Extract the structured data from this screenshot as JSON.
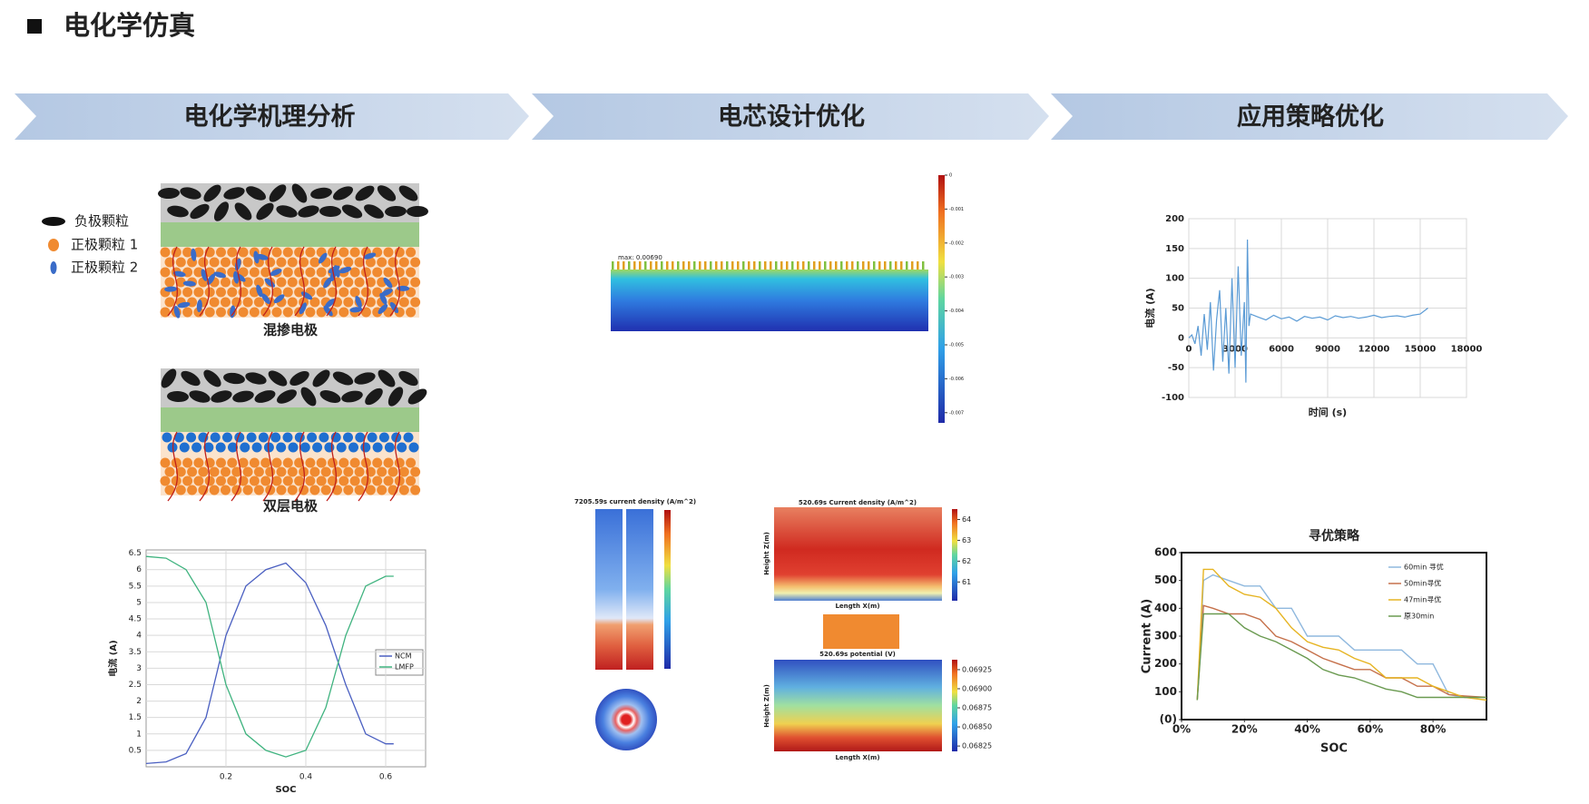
{
  "header": {
    "title": "电化学仿真"
  },
  "sections": [
    "电化学机理分析",
    "电芯设计优化",
    "应用策略优化"
  ],
  "legend": [
    "负极颗粒",
    "正极颗粒 1",
    "正极颗粒 2"
  ],
  "electrodes": [
    "混掺电极",
    "双层电极"
  ],
  "soc_chart": {
    "type": "line",
    "xlabel": "SOC",
    "ylabel": "电流 (A)",
    "x": [
      0,
      0.05,
      0.1,
      0.15,
      0.2,
      0.25,
      0.3,
      0.35,
      0.4,
      0.45,
      0.5,
      0.55,
      0.6,
      0.62
    ],
    "series": [
      {
        "name": "NCM",
        "color": "#4a5fc1",
        "values": [
          0.1,
          0.15,
          0.4,
          1.5,
          4.0,
          5.5,
          6.0,
          6.2,
          5.6,
          4.3,
          2.5,
          1.0,
          0.7,
          0.7
        ]
      },
      {
        "name": "LMFP",
        "color": "#3fb37f",
        "values": [
          6.4,
          6.35,
          6.0,
          5.0,
          2.5,
          1.0,
          0.5,
          0.3,
          0.5,
          1.8,
          4.0,
          5.5,
          5.8,
          5.8
        ]
      }
    ],
    "xlim": [
      0,
      0.7
    ],
    "ylim": [
      0,
      6.6
    ],
    "xticks": [
      0.2,
      0.4,
      0.6
    ],
    "yticks": [
      0.5,
      1,
      1.5,
      2,
      2.5,
      3,
      3.5,
      4,
      4.5,
      5,
      5.5,
      6,
      6.5
    ],
    "grid": true
  },
  "sim": {
    "max_label": "max: 0.00690",
    "cyl_title": "7205.59s current density (A/m^2)",
    "hm1_title": "520.69s Current density (A/m^2)",
    "hm2_title": "520.69s potential (V)",
    "height": "Height Z(m)",
    "length": "Length X(m)",
    "colorbars": [
      {
        "lim": [
          -0.0073,
          0
        ],
        "ticks": [
          0,
          -0.001,
          -0.002,
          -0.003,
          -0.004,
          -0.005,
          -0.006,
          -0.007
        ]
      },
      {
        "lim": [
          60.1,
          64.5
        ],
        "ticks": [
          64,
          63,
          62,
          61
        ]
      },
      {
        "lim": [
          0.06818,
          0.06938
        ],
        "ticks": [
          0.06925,
          {
            "value": 0.069,
            "label": "0.06900"
          },
          0.06875,
          {
            "value": 0.0685,
            "label": "0.06850"
          },
          0.06825
        ]
      }
    ]
  },
  "current_chart": {
    "type": "line",
    "xlabel": "时间 (s)",
    "ylabel": "电流 (A)",
    "color": "#5b9bd5",
    "x": [
      0,
      200,
      400,
      600,
      800,
      1000,
      1200,
      1400,
      1600,
      1800,
      2000,
      2200,
      2400,
      2600,
      2800,
      3000,
      3200,
      3400,
      3600,
      3700,
      3800,
      3900,
      4000,
      4500,
      5000,
      5500,
      6000,
      6500,
      7000,
      7500,
      8000,
      8500,
      9000,
      9500,
      10000,
      10500,
      11000,
      11500,
      12000,
      12500,
      13000,
      13500,
      14000,
      14500,
      15000,
      15500
    ],
    "values": [
      0,
      5,
      -10,
      20,
      -30,
      40,
      -20,
      60,
      -55,
      30,
      80,
      -40,
      50,
      -60,
      100,
      -50,
      120,
      -30,
      60,
      -75,
      165,
      20,
      40,
      35,
      30,
      38,
      32,
      35,
      28,
      36,
      33,
      35,
      30,
      37,
      34,
      36,
      33,
      35,
      38,
      34,
      36,
      37,
      35,
      38,
      40,
      50
    ],
    "xlim": [
      0,
      18000
    ],
    "ylim": [
      -100,
      200
    ],
    "xticks": [
      0,
      3000,
      6000,
      9000,
      12000,
      15000,
      18000
    ],
    "yticks": [
      -100,
      -50,
      0,
      50,
      100,
      150,
      200
    ],
    "grid": true
  },
  "strategy_chart": {
    "type": "line",
    "title": "寻优策略",
    "xlabel": "SOC",
    "ylabel": "Current (A)",
    "x": [
      5,
      7,
      10,
      15,
      20,
      25,
      30,
      35,
      40,
      45,
      50,
      55,
      60,
      65,
      70,
      75,
      80,
      85,
      90,
      97
    ],
    "series": [
      {
        "name": "60min 寻优",
        "color": "#8fb8de",
        "values": [
          70,
          500,
          520,
          500,
          480,
          480,
          400,
          400,
          300,
          300,
          300,
          250,
          250,
          250,
          250,
          200,
          200,
          90,
          80,
          80
        ]
      },
      {
        "name": "50min寻优",
        "color": "#c5704a",
        "values": [
          70,
          410,
          400,
          380,
          380,
          360,
          300,
          280,
          250,
          220,
          200,
          180,
          180,
          150,
          150,
          120,
          120,
          90,
          85,
          80
        ]
      },
      {
        "name": "47min寻优",
        "color": "#e6b422",
        "values": [
          70,
          540,
          540,
          480,
          450,
          440,
          400,
          330,
          280,
          260,
          250,
          220,
          200,
          150,
          150,
          150,
          120,
          100,
          80,
          70
        ]
      },
      {
        "name": "原30min",
        "color": "#6a9a50",
        "values": [
          70,
          380,
          380,
          380,
          330,
          300,
          280,
          250,
          220,
          180,
          160,
          150,
          130,
          110,
          100,
          80,
          80,
          80,
          80,
          80
        ]
      }
    ],
    "xlim": [
      0,
      97
    ],
    "ylim": [
      0,
      600
    ],
    "xticks": [
      {
        "value": 0,
        "label": "0%"
      },
      {
        "value": 20,
        "label": "20%"
      },
      {
        "value": 40,
        "label": "40%"
      },
      {
        "value": 60,
        "label": "60%"
      },
      {
        "value": 80,
        "label": "80%"
      }
    ],
    "yticks": [
      {
        "value": 0,
        "label": "(0)"
      },
      100,
      200,
      300,
      400,
      500,
      600
    ],
    "grid": false
  }
}
